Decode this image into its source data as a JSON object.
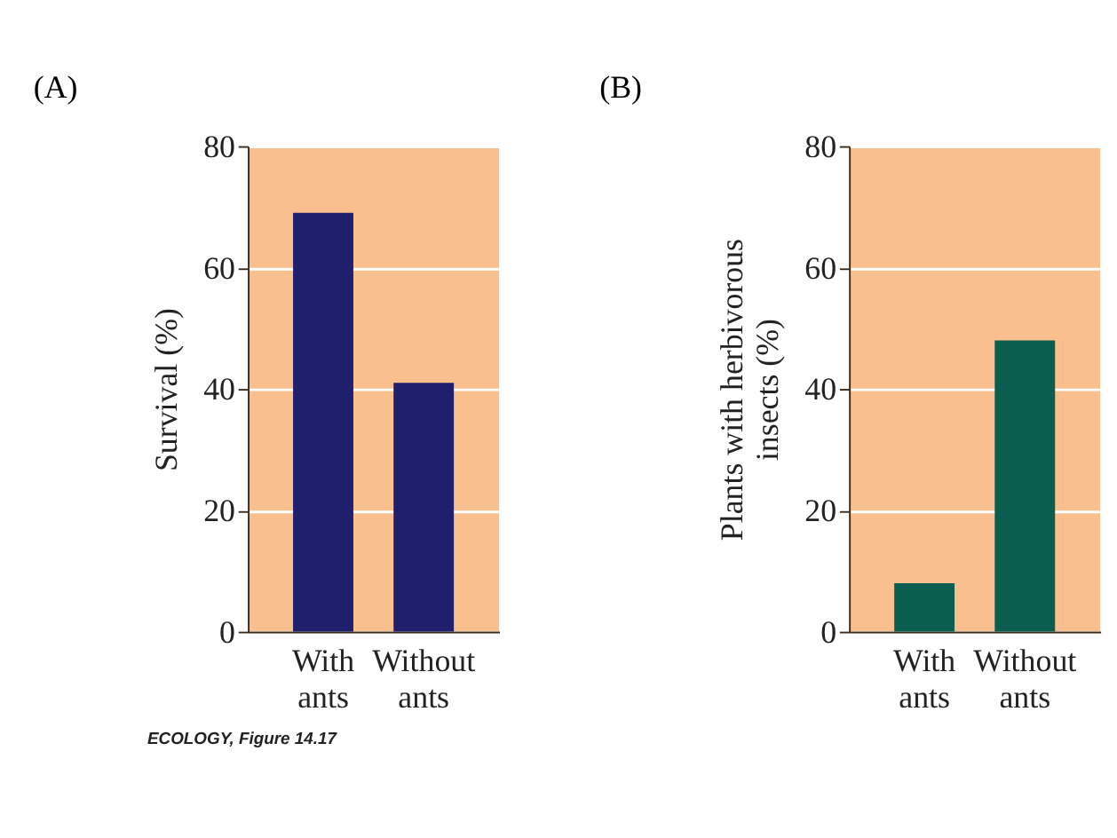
{
  "chart_data": [
    {
      "type": "bar",
      "title": "(A)",
      "ylabel": "Survival (%)",
      "categories": [
        "With ants",
        "Without ants"
      ],
      "values": [
        69,
        41
      ],
      "color": "#1f1f6e",
      "ylim": [
        0,
        80
      ],
      "yticks": [
        0,
        20,
        40,
        60,
        80
      ],
      "grid": "y",
      "annotations": [
        "ECOLOGY, Figure 14.17"
      ]
    },
    {
      "type": "bar",
      "title": "(B)",
      "ylabel": "Plants with herbivorous insects (%)",
      "categories": [
        "With ants",
        "Without ants"
      ],
      "values": [
        8,
        48
      ],
      "color": "#0b5e4f",
      "ylim": [
        0,
        80
      ],
      "yticks": [
        0,
        20,
        40,
        60,
        80
      ],
      "grid": "y"
    }
  ]
}
